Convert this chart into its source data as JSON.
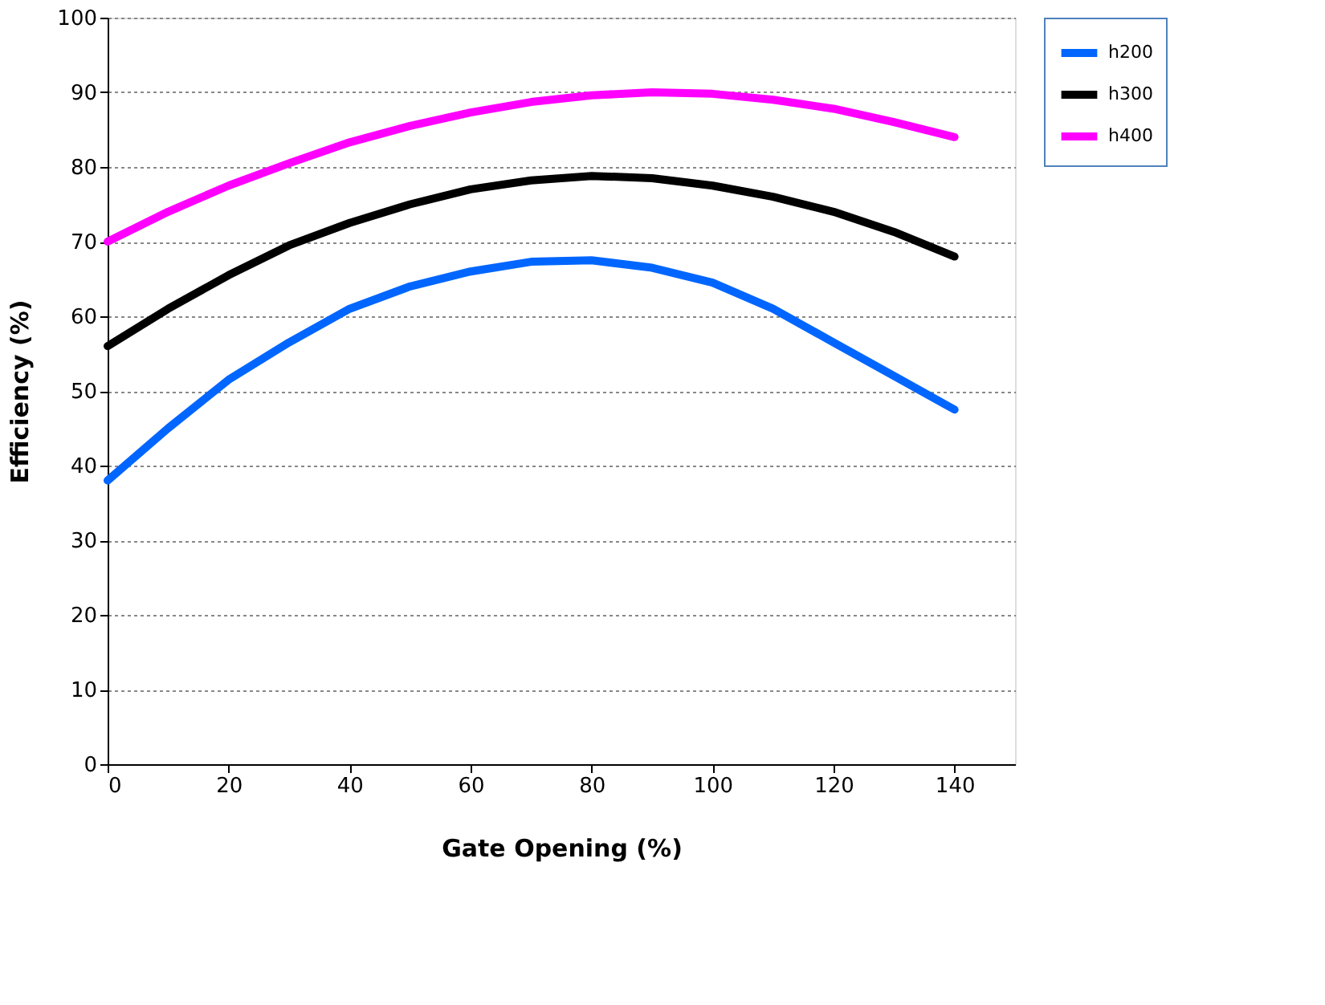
{
  "chart_data": {
    "type": "line",
    "xlabel": "Gate Opening (%)",
    "ylabel": "Efficiency (%)",
    "x": [
      0,
      10,
      20,
      30,
      40,
      50,
      60,
      70,
      80,
      90,
      100,
      110,
      120,
      130,
      140
    ],
    "series": [
      {
        "name": "h200",
        "color": "#0066ff",
        "values": [
          38,
          45,
          51.5,
          56.5,
          61,
          64,
          66,
          67.3,
          67.5,
          66.5,
          64.5,
          61,
          56.5,
          52,
          47.5
        ]
      },
      {
        "name": "h300",
        "color": "#000000",
        "values": [
          56,
          61,
          65.5,
          69.5,
          72.5,
          75,
          77,
          78.2,
          78.8,
          78.5,
          77.5,
          76,
          74,
          71.3,
          68
        ]
      },
      {
        "name": "h400",
        "color": "#ff00ff",
        "values": [
          70,
          74,
          77.5,
          80.5,
          83.3,
          85.5,
          87.3,
          88.7,
          89.6,
          90,
          89.8,
          89,
          87.8,
          86,
          84
        ]
      }
    ],
    "xlim": [
      0,
      150
    ],
    "xticks": [
      0,
      20,
      40,
      60,
      80,
      100,
      120,
      140
    ],
    "ylim": [
      0,
      100
    ],
    "yticks": [
      0,
      10,
      20,
      30,
      40,
      50,
      60,
      70,
      80,
      90,
      100
    ],
    "grid": "y",
    "legend": "right",
    "marker": "none",
    "line_style": "solid"
  }
}
